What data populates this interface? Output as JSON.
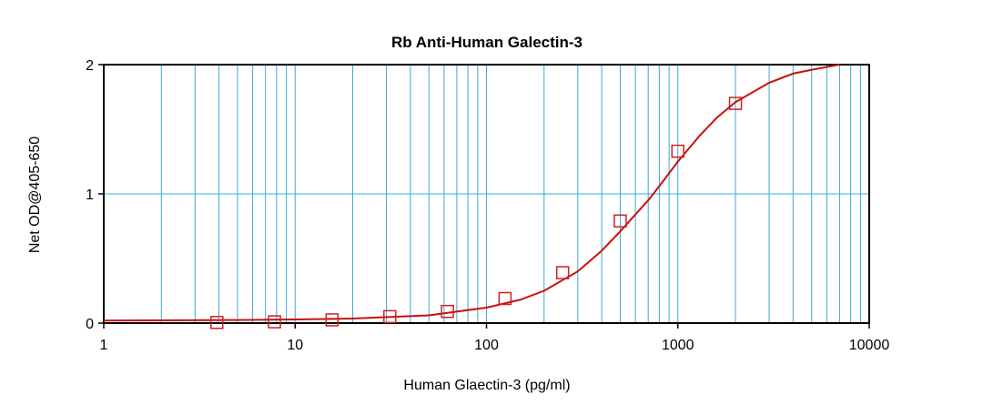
{
  "chart_data": {
    "type": "scatter",
    "title": "Rb Anti-Human Galectin-3",
    "xlabel": "Human Glaectin-3 (pg/ml)",
    "ylabel": "Net OD@405-650",
    "x_scale": "log",
    "xlim": [
      1,
      10000
    ],
    "ylim": [
      0,
      2
    ],
    "x_ticks": [
      1,
      10,
      100,
      1000,
      10000
    ],
    "x_tick_labels": [
      "1",
      "10",
      "100",
      "1000",
      "10000"
    ],
    "y_ticks": [
      0,
      1,
      2
    ],
    "y_tick_labels": [
      "0",
      "1",
      "2"
    ],
    "grid": true,
    "series": [
      {
        "type": "scatter",
        "marker": "square",
        "x": [
          3.9,
          7.8,
          15.6,
          31.25,
          62.5,
          125,
          250,
          500,
          1000,
          2000
        ],
        "y": [
          0.005,
          0.01,
          0.025,
          0.05,
          0.09,
          0.19,
          0.39,
          0.79,
          1.33,
          1.7
        ]
      },
      {
        "type": "line",
        "x": [
          1,
          2,
          5,
          10,
          20,
          50,
          100,
          150,
          200,
          300,
          400,
          500,
          600,
          700,
          800,
          1000,
          1300,
          1600,
          2000,
          3000,
          4000,
          5000,
          7000
        ],
        "y": [
          0.02,
          0.021,
          0.024,
          0.028,
          0.035,
          0.06,
          0.12,
          0.18,
          0.25,
          0.4,
          0.56,
          0.71,
          0.84,
          0.95,
          1.06,
          1.25,
          1.45,
          1.59,
          1.71,
          1.86,
          1.93,
          1.96,
          2.0
        ]
      }
    ],
    "colors": {
      "grid": "#3aa8d8",
      "marker": "#d02020",
      "curve": "#c81010",
      "axis": "#000000"
    }
  }
}
